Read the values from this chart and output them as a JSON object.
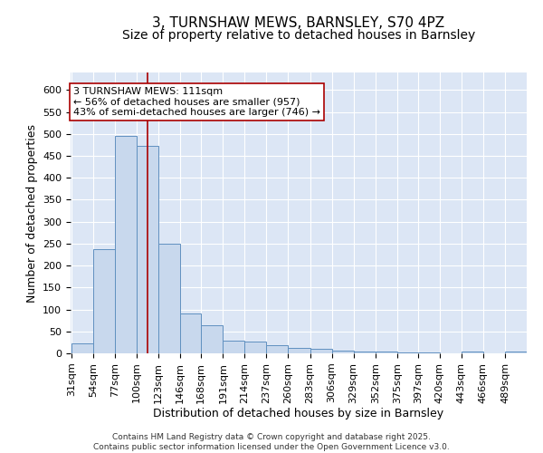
{
  "title": "3, TURNSHAW MEWS, BARNSLEY, S70 4PZ",
  "subtitle": "Size of property relative to detached houses in Barnsley",
  "xlabel": "Distribution of detached houses by size in Barnsley",
  "ylabel": "Number of detached properties",
  "bar_color": "#c8d8ed",
  "bar_edge_color": "#6090c0",
  "background_color": "#dce6f5",
  "fig_background_color": "#ffffff",
  "grid_color": "#ffffff",
  "property_line_x": 111,
  "property_line_color": "#aa0000",
  "annotation_text": "3 TURNSHAW MEWS: 111sqm\n← 56% of detached houses are smaller (957)\n43% of semi-detached houses are larger (746) →",
  "annotation_box_color": "#ffffff",
  "annotation_box_edge_color": "#aa0000",
  "footer_text": "Contains HM Land Registry data © Crown copyright and database right 2025.\nContains public sector information licensed under the Open Government Licence v3.0.",
  "categories": [
    "31sqm",
    "54sqm",
    "77sqm",
    "100sqm",
    "123sqm",
    "146sqm",
    "168sqm",
    "191sqm",
    "214sqm",
    "237sqm",
    "260sqm",
    "283sqm",
    "306sqm",
    "329sqm",
    "352sqm",
    "375sqm",
    "397sqm",
    "420sqm",
    "443sqm",
    "466sqm",
    "489sqm"
  ],
  "bin_edges": [
    31,
    54,
    77,
    100,
    123,
    146,
    168,
    191,
    214,
    237,
    260,
    283,
    306,
    329,
    352,
    375,
    397,
    420,
    443,
    466,
    489,
    512
  ],
  "values": [
    23,
    238,
    495,
    472,
    250,
    90,
    63,
    28,
    27,
    18,
    13,
    10,
    7,
    5,
    4,
    3,
    2,
    1,
    5,
    1,
    4
  ],
  "ylim": [
    0,
    640
  ],
  "yticks": [
    0,
    50,
    100,
    150,
    200,
    250,
    300,
    350,
    400,
    450,
    500,
    550,
    600
  ],
  "title_fontsize": 11,
  "subtitle_fontsize": 10,
  "axis_label_fontsize": 9,
  "tick_fontsize": 8,
  "annotation_fontsize": 8,
  "footer_fontsize": 6.5
}
